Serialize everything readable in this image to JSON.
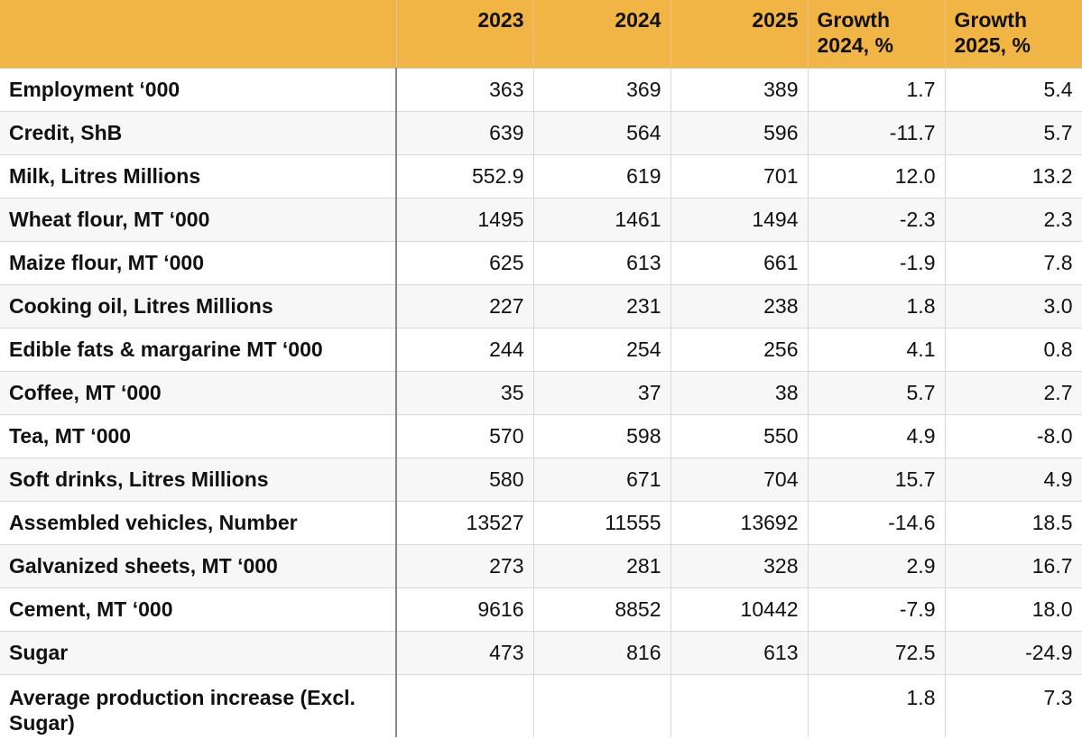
{
  "header": {
    "blank": "",
    "y2023": "2023",
    "y2024": "2024",
    "y2025": "2025",
    "growth2024": "Growth 2024, %",
    "growth2025": "Growth 2025, %"
  },
  "rows": [
    {
      "label": "Employment ‘000",
      "v2023": "363",
      "v2024": "369",
      "v2025": "389",
      "g2024": "1.7",
      "g2025": "5.4"
    },
    {
      "label": "Credit, ShB",
      "v2023": "639",
      "v2024": "564",
      "v2025": "596",
      "g2024": "-11.7",
      "g2025": "5.7"
    },
    {
      "label": "Milk,  Litres Millions",
      "v2023": "552.9",
      "v2024": "619",
      "v2025": "701",
      "g2024": "12.0",
      "g2025": "13.2"
    },
    {
      "label": "Wheat  flour, MT ‘000",
      "v2023": "1495",
      "v2024": "1461",
      "v2025": "1494",
      "g2024": "-2.3",
      "g2025": "2.3"
    },
    {
      "label": "Maize flour, MT ‘000",
      "v2023": "625",
      "v2024": "613",
      "v2025": "661",
      "g2024": "-1.9",
      "g2025": "7.8"
    },
    {
      "label": "Cooking oil, Litres Millions",
      "v2023": "227",
      "v2024": "231",
      "v2025": "238",
      "g2024": "1.8",
      "g2025": "3.0"
    },
    {
      "label": "Edible fats & margarine MT ‘000",
      "v2023": "244",
      "v2024": "254",
      "v2025": "256",
      "g2024": "4.1",
      "g2025": "0.8"
    },
    {
      "label": "Coffee, MT ‘000",
      "v2023": "35",
      "v2024": "37",
      "v2025": "38",
      "g2024": "5.7",
      "g2025": "2.7"
    },
    {
      "label": "Tea, MT ‘000",
      "v2023": "570",
      "v2024": "598",
      "v2025": "550",
      "g2024": "4.9",
      "g2025": "-8.0"
    },
    {
      "label": "Soft drinks, Litres Millions",
      "v2023": "580",
      "v2024": "671",
      "v2025": "704",
      "g2024": "15.7",
      "g2025": "4.9"
    },
    {
      "label": "Assembled vehicles, Number",
      "v2023": "13527",
      "v2024": "11555",
      "v2025": "13692",
      "g2024": "-14.6",
      "g2025": "18.5"
    },
    {
      "label": "Galvanized sheets, MT ‘000",
      "v2023": "273",
      "v2024": "281",
      "v2025": "328",
      "g2024": "2.9",
      "g2025": "16.7"
    },
    {
      "label": "Cement, MT ‘000",
      "v2023": "9616",
      "v2024": "8852",
      "v2025": "10442",
      "g2024": "-7.9",
      "g2025": "18.0"
    },
    {
      "label": "Sugar",
      "v2023": "473",
      "v2024": "816",
      "v2025": "613",
      "g2024": "72.5",
      "g2025": "-24.9"
    },
    {
      "label": "Average production increase (Excl. Sugar)",
      "v2023": "",
      "v2024": "",
      "v2025": "",
      "g2024": "1.8",
      "g2025": "7.3"
    }
  ],
  "colors": {
    "header_bg": "#f0b545",
    "row_alt_bg": "#f7f7f7"
  }
}
